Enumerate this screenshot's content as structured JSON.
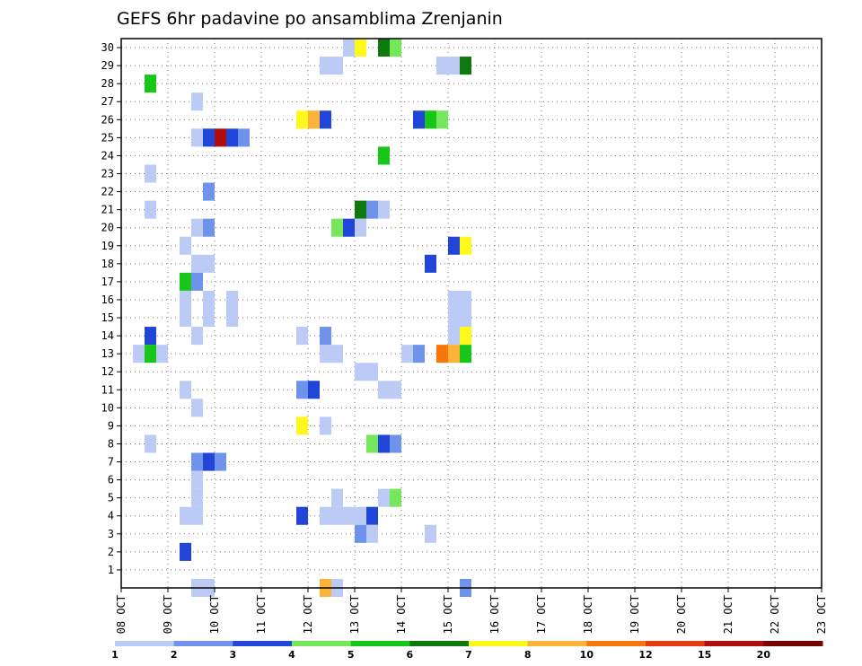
{
  "chart_data": {
    "type": "heatmap",
    "title": "GEFS 6hr padavine po ansamblima Zrenjanin",
    "x_tick_labels": [
      "08 OCT",
      "09 OCT",
      "10 OCT",
      "11 OCT",
      "12 OCT",
      "13 OCT",
      "14 OCT",
      "15 OCT",
      "16 OCT",
      "17 OCT",
      "18 OCT",
      "19 OCT",
      "20 OCT",
      "21 OCT",
      "22 OCT",
      "23 OCT"
    ],
    "y_tick_labels": [
      "1",
      "2",
      "3",
      "4",
      "5",
      "6",
      "7",
      "8",
      "9",
      "10",
      "11",
      "12",
      "13",
      "14",
      "15",
      "16",
      "17",
      "18",
      "19",
      "20",
      "21",
      "22",
      "23",
      "24",
      "25",
      "26",
      "27",
      "28",
      "29",
      "30"
    ],
    "x_range_steps": [
      0,
      60
    ],
    "y_range": [
      0,
      30
    ],
    "grid": true,
    "colorbar": {
      "labels": [
        "1",
        "2",
        "3",
        "4",
        "5",
        "6",
        "7",
        "8",
        "10",
        "12",
        "15",
        "20"
      ],
      "colors": [
        "#bccbf5",
        "#6f93ea",
        "#2045d8",
        "#74e85a",
        "#18c618",
        "#0e7a0e",
        "#fff81b",
        "#fdb33a",
        "#f9760d",
        "#e83a12",
        "#b20d0d",
        "#780303"
      ]
    },
    "cells": [
      [
        30,
        20,
        1
      ],
      [
        30,
        21,
        7
      ],
      [
        30,
        23,
        6
      ],
      [
        30,
        24,
        4
      ],
      [
        29,
        18,
        1
      ],
      [
        29,
        19,
        1
      ],
      [
        29,
        28,
        1
      ],
      [
        29,
        29,
        1
      ],
      [
        29,
        30,
        6
      ],
      [
        28,
        3,
        5
      ],
      [
        27,
        7,
        1
      ],
      [
        26,
        16,
        7
      ],
      [
        26,
        17,
        8
      ],
      [
        26,
        18,
        3
      ],
      [
        26,
        26,
        3
      ],
      [
        26,
        27,
        5
      ],
      [
        26,
        28,
        4
      ],
      [
        25,
        7,
        1
      ],
      [
        25,
        8,
        3
      ],
      [
        25,
        9,
        11
      ],
      [
        25,
        10,
        3
      ],
      [
        25,
        11,
        2
      ],
      [
        24,
        23,
        5
      ],
      [
        23,
        3,
        1
      ],
      [
        22,
        8,
        2
      ],
      [
        21,
        3,
        1
      ],
      [
        21,
        21,
        6
      ],
      [
        21,
        22,
        2
      ],
      [
        21,
        23,
        1
      ],
      [
        20,
        7,
        1
      ],
      [
        20,
        8,
        2
      ],
      [
        20,
        19,
        4
      ],
      [
        20,
        20,
        3
      ],
      [
        20,
        21,
        1
      ],
      [
        19,
        6,
        1
      ],
      [
        19,
        29,
        3
      ],
      [
        19,
        30,
        7
      ],
      [
        18,
        7,
        1
      ],
      [
        18,
        8,
        1
      ],
      [
        18,
        27,
        3
      ],
      [
        17,
        6,
        5
      ],
      [
        17,
        7,
        2
      ],
      [
        16,
        6,
        1
      ],
      [
        16,
        8,
        1
      ],
      [
        16,
        10,
        1
      ],
      [
        16,
        29,
        1
      ],
      [
        16,
        30,
        1
      ],
      [
        15,
        6,
        1
      ],
      [
        15,
        8,
        1
      ],
      [
        15,
        10,
        1
      ],
      [
        15,
        29,
        1
      ],
      [
        15,
        30,
        1
      ],
      [
        14,
        3,
        3
      ],
      [
        14,
        7,
        1
      ],
      [
        14,
        16,
        1
      ],
      [
        14,
        18,
        2
      ],
      [
        14,
        29,
        1
      ],
      [
        14,
        30,
        7
      ],
      [
        13,
        2,
        1
      ],
      [
        13,
        3,
        5
      ],
      [
        13,
        4,
        1
      ],
      [
        13,
        18,
        1
      ],
      [
        13,
        19,
        1
      ],
      [
        13,
        25,
        1
      ],
      [
        13,
        26,
        2
      ],
      [
        13,
        28,
        9
      ],
      [
        13,
        29,
        8
      ],
      [
        13,
        30,
        5
      ],
      [
        12,
        21,
        1
      ],
      [
        12,
        22,
        1
      ],
      [
        11,
        6,
        1
      ],
      [
        11,
        16,
        2
      ],
      [
        11,
        17,
        3
      ],
      [
        11,
        23,
        1
      ],
      [
        11,
        24,
        1
      ],
      [
        10,
        7,
        1
      ],
      [
        9,
        16,
        7
      ],
      [
        9,
        18,
        1
      ],
      [
        8,
        3,
        1
      ],
      [
        8,
        22,
        4
      ],
      [
        8,
        23,
        3
      ],
      [
        8,
        24,
        2
      ],
      [
        7,
        7,
        2
      ],
      [
        7,
        8,
        3
      ],
      [
        7,
        9,
        2
      ],
      [
        6,
        7,
        1
      ],
      [
        5,
        7,
        1
      ],
      [
        5,
        19,
        1
      ],
      [
        5,
        23,
        1
      ],
      [
        5,
        24,
        4
      ],
      [
        4,
        6,
        1
      ],
      [
        4,
        7,
        1
      ],
      [
        4,
        16,
        3
      ],
      [
        4,
        18,
        1
      ],
      [
        4,
        19,
        1
      ],
      [
        4,
        20,
        1
      ],
      [
        4,
        21,
        1
      ],
      [
        4,
        22,
        3
      ],
      [
        3,
        21,
        2
      ],
      [
        3,
        22,
        1
      ],
      [
        3,
        27,
        1
      ],
      [
        2,
        6,
        3
      ],
      [
        0,
        7,
        1
      ],
      [
        0,
        8,
        1
      ],
      [
        0,
        18,
        8
      ],
      [
        0,
        19,
        1
      ],
      [
        0,
        30,
        2
      ]
    ]
  }
}
